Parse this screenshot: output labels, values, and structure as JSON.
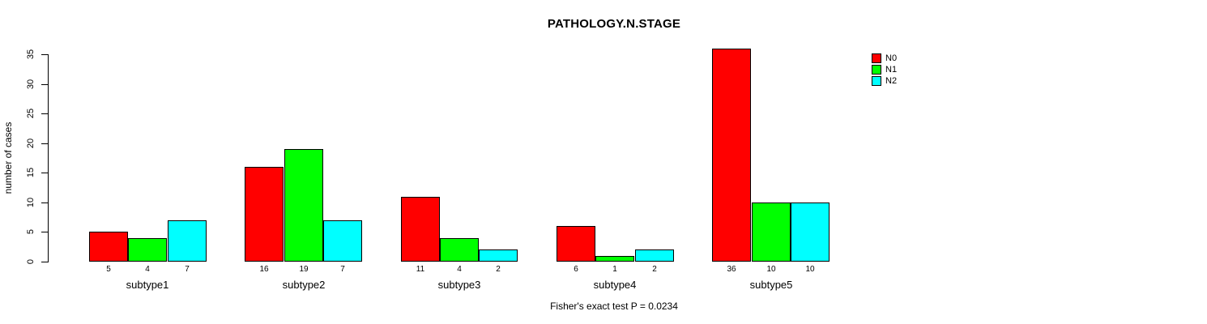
{
  "title": "PATHOLOGY.N.STAGE",
  "ylabel": "number of cases",
  "footer": "Fisher's exact test P = 0.0234",
  "legend": [
    {
      "label": "N0",
      "color": "#ff0000"
    },
    {
      "label": "N1",
      "color": "#00ff00"
    },
    {
      "label": "N2",
      "color": "#00ffff"
    }
  ],
  "chart_data": {
    "type": "bar",
    "grouped": true,
    "title": "PATHOLOGY.N.STAGE",
    "xlabel": "",
    "ylabel": "number of cases",
    "categories": [
      "subtype1",
      "subtype2",
      "subtype3",
      "subtype4",
      "subtype5"
    ],
    "series": [
      {
        "name": "N0",
        "color": "#ff0000",
        "values": [
          5,
          16,
          11,
          6,
          36
        ]
      },
      {
        "name": "N1",
        "color": "#00ff00",
        "values": [
          4,
          19,
          4,
          1,
          10
        ]
      },
      {
        "name": "N2",
        "color": "#00ffff",
        "values": [
          7,
          7,
          2,
          2,
          10
        ]
      }
    ],
    "bar_value_labels_shown": true,
    "ylim": [
      0,
      35
    ],
    "yticks": [
      0,
      5,
      10,
      15,
      20,
      25,
      30,
      35
    ],
    "grid": false,
    "legend_position": "top-right",
    "annotation": "Fisher's exact test P = 0.0234"
  }
}
